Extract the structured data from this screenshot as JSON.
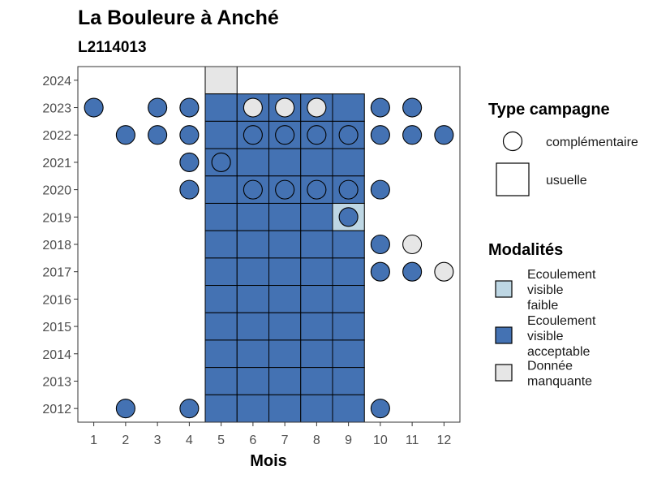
{
  "chart_data": {
    "type": "heatmap",
    "title": "La Bouleure à Anché",
    "subtitle": "L2114013",
    "xlabel": "Mois",
    "ylabel": "",
    "x_ticks": [
      "1",
      "2",
      "3",
      "4",
      "5",
      "6",
      "7",
      "8",
      "9",
      "10",
      "11",
      "12"
    ],
    "y_ticks": [
      "2012",
      "2013",
      "2014",
      "2015",
      "2016",
      "2017",
      "2018",
      "2019",
      "2020",
      "2021",
      "2022",
      "2023",
      "2024"
    ],
    "xlim": [
      0.5,
      12.5
    ],
    "ylim": [
      2011.5,
      2024.5
    ],
    "colors": {
      "Ecoulement visible faible": "#bed7e4",
      "Ecoulement visible acceptable": "#4472b3",
      "Donnée manquante": "#e6e6e6"
    },
    "legend_shape": {
      "title": "Type campagne",
      "entries": [
        {
          "label": "complémentaire",
          "shape": "circle"
        },
        {
          "label": "usuelle",
          "shape": "square"
        }
      ]
    },
    "legend_fill": {
      "title": "Modalités",
      "entries": [
        {
          "key": "Ecoulement visible faible",
          "lines": [
            "Ecoulement",
            "visible",
            "faible"
          ]
        },
        {
          "key": "Ecoulement visible acceptable",
          "lines": [
            "Ecoulement",
            "visible",
            "acceptable"
          ]
        },
        {
          "key": "Donnée manquante",
          "lines": [
            "Donnée",
            "manquante"
          ]
        }
      ]
    },
    "usuelle": [
      {
        "year": 2024,
        "month": 5,
        "modalite": "Donnée manquante"
      },
      {
        "year": 2023,
        "month": 5,
        "modalite": "Ecoulement visible acceptable"
      },
      {
        "year": 2023,
        "month": 6,
        "modalite": "Ecoulement visible acceptable"
      },
      {
        "year": 2023,
        "month": 7,
        "modalite": "Ecoulement visible acceptable"
      },
      {
        "year": 2023,
        "month": 8,
        "modalite": "Ecoulement visible acceptable"
      },
      {
        "year": 2023,
        "month": 9,
        "modalite": "Ecoulement visible acceptable"
      },
      {
        "year": 2022,
        "month": 5,
        "modalite": "Ecoulement visible acceptable"
      },
      {
        "year": 2022,
        "month": 6,
        "modalite": "Ecoulement visible acceptable"
      },
      {
        "year": 2022,
        "month": 7,
        "modalite": "Ecoulement visible acceptable"
      },
      {
        "year": 2022,
        "month": 8,
        "modalite": "Ecoulement visible acceptable"
      },
      {
        "year": 2022,
        "month": 9,
        "modalite": "Ecoulement visible acceptable"
      },
      {
        "year": 2021,
        "month": 5,
        "modalite": "Ecoulement visible acceptable"
      },
      {
        "year": 2021,
        "month": 6,
        "modalite": "Ecoulement visible acceptable"
      },
      {
        "year": 2021,
        "month": 7,
        "modalite": "Ecoulement visible acceptable"
      },
      {
        "year": 2021,
        "month": 8,
        "modalite": "Ecoulement visible acceptable"
      },
      {
        "year": 2021,
        "month": 9,
        "modalite": "Ecoulement visible acceptable"
      },
      {
        "year": 2020,
        "month": 5,
        "modalite": "Ecoulement visible acceptable"
      },
      {
        "year": 2020,
        "month": 6,
        "modalite": "Ecoulement visible acceptable"
      },
      {
        "year": 2020,
        "month": 7,
        "modalite": "Ecoulement visible acceptable"
      },
      {
        "year": 2020,
        "month": 8,
        "modalite": "Ecoulement visible acceptable"
      },
      {
        "year": 2020,
        "month": 9,
        "modalite": "Ecoulement visible acceptable"
      },
      {
        "year": 2019,
        "month": 5,
        "modalite": "Ecoulement visible acceptable"
      },
      {
        "year": 2019,
        "month": 6,
        "modalite": "Ecoulement visible acceptable"
      },
      {
        "year": 2019,
        "month": 7,
        "modalite": "Ecoulement visible acceptable"
      },
      {
        "year": 2019,
        "month": 8,
        "modalite": "Ecoulement visible acceptable"
      },
      {
        "year": 2019,
        "month": 9,
        "modalite": "Ecoulement visible faible"
      },
      {
        "year": 2018,
        "month": 5,
        "modalite": "Ecoulement visible acceptable"
      },
      {
        "year": 2018,
        "month": 6,
        "modalite": "Ecoulement visible acceptable"
      },
      {
        "year": 2018,
        "month": 7,
        "modalite": "Ecoulement visible acceptable"
      },
      {
        "year": 2018,
        "month": 8,
        "modalite": "Ecoulement visible acceptable"
      },
      {
        "year": 2018,
        "month": 9,
        "modalite": "Ecoulement visible acceptable"
      },
      {
        "year": 2017,
        "month": 5,
        "modalite": "Ecoulement visible acceptable"
      },
      {
        "year": 2017,
        "month": 6,
        "modalite": "Ecoulement visible acceptable"
      },
      {
        "year": 2017,
        "month": 7,
        "modalite": "Ecoulement visible acceptable"
      },
      {
        "year": 2017,
        "month": 8,
        "modalite": "Ecoulement visible acceptable"
      },
      {
        "year": 2017,
        "month": 9,
        "modalite": "Ecoulement visible acceptable"
      },
      {
        "year": 2016,
        "month": 5,
        "modalite": "Ecoulement visible acceptable"
      },
      {
        "year": 2016,
        "month": 6,
        "modalite": "Ecoulement visible acceptable"
      },
      {
        "year": 2016,
        "month": 7,
        "modalite": "Ecoulement visible acceptable"
      },
      {
        "year": 2016,
        "month": 8,
        "modalite": "Ecoulement visible acceptable"
      },
      {
        "year": 2016,
        "month": 9,
        "modalite": "Ecoulement visible acceptable"
      },
      {
        "year": 2015,
        "month": 5,
        "modalite": "Ecoulement visible acceptable"
      },
      {
        "year": 2015,
        "month": 6,
        "modalite": "Ecoulement visible acceptable"
      },
      {
        "year": 2015,
        "month": 7,
        "modalite": "Ecoulement visible acceptable"
      },
      {
        "year": 2015,
        "month": 8,
        "modalite": "Ecoulement visible acceptable"
      },
      {
        "year": 2015,
        "month": 9,
        "modalite": "Ecoulement visible acceptable"
      },
      {
        "year": 2014,
        "month": 5,
        "modalite": "Ecoulement visible acceptable"
      },
      {
        "year": 2014,
        "month": 6,
        "modalite": "Ecoulement visible acceptable"
      },
      {
        "year": 2014,
        "month": 7,
        "modalite": "Ecoulement visible acceptable"
      },
      {
        "year": 2014,
        "month": 8,
        "modalite": "Ecoulement visible acceptable"
      },
      {
        "year": 2014,
        "month": 9,
        "modalite": "Ecoulement visible acceptable"
      },
      {
        "year": 2013,
        "month": 5,
        "modalite": "Ecoulement visible acceptable"
      },
      {
        "year": 2013,
        "month": 6,
        "modalite": "Ecoulement visible acceptable"
      },
      {
        "year": 2013,
        "month": 7,
        "modalite": "Ecoulement visible acceptable"
      },
      {
        "year": 2013,
        "month": 8,
        "modalite": "Ecoulement visible acceptable"
      },
      {
        "year": 2013,
        "month": 9,
        "modalite": "Ecoulement visible acceptable"
      },
      {
        "year": 2012,
        "month": 5,
        "modalite": "Ecoulement visible acceptable"
      },
      {
        "year": 2012,
        "month": 6,
        "modalite": "Ecoulement visible acceptable"
      },
      {
        "year": 2012,
        "month": 7,
        "modalite": "Ecoulement visible acceptable"
      },
      {
        "year": 2012,
        "month": 8,
        "modalite": "Ecoulement visible acceptable"
      },
      {
        "year": 2012,
        "month": 9,
        "modalite": "Ecoulement visible acceptable"
      }
    ],
    "complementaire": [
      {
        "year": 2023,
        "month": 1,
        "modalite": "Ecoulement visible acceptable"
      },
      {
        "year": 2023,
        "month": 3,
        "modalite": "Ecoulement visible acceptable"
      },
      {
        "year": 2023,
        "month": 4,
        "modalite": "Ecoulement visible acceptable"
      },
      {
        "year": 2023,
        "month": 6,
        "modalite": "Donnée manquante"
      },
      {
        "year": 2023,
        "month": 7,
        "modalite": "Donnée manquante"
      },
      {
        "year": 2023,
        "month": 8,
        "modalite": "Donnée manquante"
      },
      {
        "year": 2023,
        "month": 10,
        "modalite": "Ecoulement visible acceptable"
      },
      {
        "year": 2023,
        "month": 11,
        "modalite": "Ecoulement visible acceptable"
      },
      {
        "year": 2022,
        "month": 2,
        "modalite": "Ecoulement visible acceptable"
      },
      {
        "year": 2022,
        "month": 3,
        "modalite": "Ecoulement visible acceptable"
      },
      {
        "year": 2022,
        "month": 4,
        "modalite": "Ecoulement visible acceptable"
      },
      {
        "year": 2022,
        "month": 6,
        "modalite": "Ecoulement visible acceptable"
      },
      {
        "year": 2022,
        "month": 7,
        "modalite": "Ecoulement visible acceptable"
      },
      {
        "year": 2022,
        "month": 8,
        "modalite": "Ecoulement visible acceptable"
      },
      {
        "year": 2022,
        "month": 9,
        "modalite": "Ecoulement visible acceptable"
      },
      {
        "year": 2022,
        "month": 10,
        "modalite": "Ecoulement visible acceptable"
      },
      {
        "year": 2022,
        "month": 11,
        "modalite": "Ecoulement visible acceptable"
      },
      {
        "year": 2022,
        "month": 12,
        "modalite": "Ecoulement visible acceptable"
      },
      {
        "year": 2021,
        "month": 4,
        "modalite": "Ecoulement visible acceptable"
      },
      {
        "year": 2021,
        "month": 5,
        "modalite": "Ecoulement visible acceptable"
      },
      {
        "year": 2020,
        "month": 4,
        "modalite": "Ecoulement visible acceptable"
      },
      {
        "year": 2020,
        "month": 6,
        "modalite": "Ecoulement visible acceptable"
      },
      {
        "year": 2020,
        "month": 7,
        "modalite": "Ecoulement visible acceptable"
      },
      {
        "year": 2020,
        "month": 8,
        "modalite": "Ecoulement visible acceptable"
      },
      {
        "year": 2020,
        "month": 9,
        "modalite": "Ecoulement visible acceptable"
      },
      {
        "year": 2020,
        "month": 10,
        "modalite": "Ecoulement visible acceptable"
      },
      {
        "year": 2019,
        "month": 9,
        "modalite": "Ecoulement visible acceptable"
      },
      {
        "year": 2018,
        "month": 10,
        "modalite": "Ecoulement visible acceptable"
      },
      {
        "year": 2018,
        "month": 11,
        "modalite": "Donnée manquante"
      },
      {
        "year": 2017,
        "month": 10,
        "modalite": "Ecoulement visible acceptable"
      },
      {
        "year": 2017,
        "month": 11,
        "modalite": "Ecoulement visible acceptable"
      },
      {
        "year": 2017,
        "month": 12,
        "modalite": "Donnée manquante"
      },
      {
        "year": 2012,
        "month": 2,
        "modalite": "Ecoulement visible acceptable"
      },
      {
        "year": 2012,
        "month": 4,
        "modalite": "Ecoulement visible acceptable"
      },
      {
        "year": 2012,
        "month": 10,
        "modalite": "Ecoulement visible acceptable"
      }
    ]
  }
}
